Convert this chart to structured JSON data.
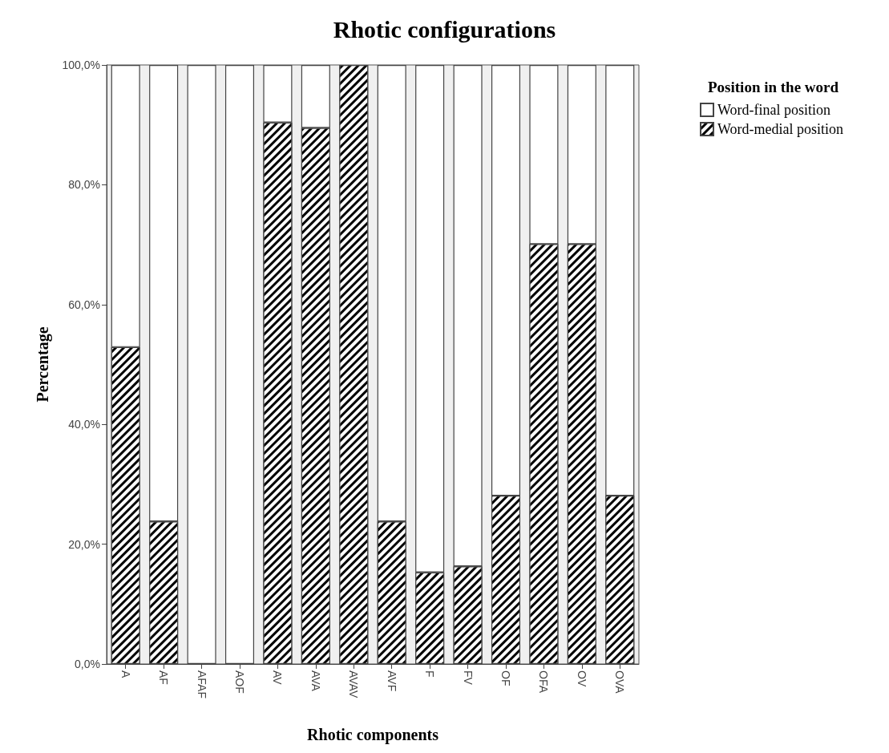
{
  "chart_data": {
    "type": "bar",
    "title": "Rhotic configurations",
    "xlabel": "Rhotic components",
    "ylabel": "Percentage",
    "legend_title": "Position in the word",
    "categories": [
      "A",
      "AF",
      "AFAF",
      "AOF",
      "AV",
      "AVA",
      "AVAV",
      "AVF",
      "F",
      "FV",
      "OF",
      "OFA",
      "OV",
      "OVA"
    ],
    "stacked": true,
    "series": [
      {
        "name": "Word-medial position",
        "color": "#000000",
        "values": [
          52.9,
          23.8,
          0,
          0,
          90.4,
          89.5,
          100,
          23.8,
          15.3,
          16.3,
          28.1,
          70.1,
          70.1,
          28.1
        ]
      },
      {
        "name": "Word-final position",
        "color": "#ffffff",
        "values": [
          47.1,
          76.2,
          100,
          100,
          9.6,
          10.5,
          0,
          76.2,
          84.7,
          83.7,
          71.9,
          29.9,
          29.9,
          71.9
        ]
      }
    ],
    "ylim": [
      0,
      100
    ],
    "yticks": [
      {
        "value": 0,
        "label": "0,0%"
      },
      {
        "value": 20,
        "label": "20,0%"
      },
      {
        "value": 40,
        "label": "40,0%"
      },
      {
        "value": 60,
        "label": "60,0%"
      },
      {
        "value": 80,
        "label": "80,0%"
      },
      {
        "value": 100,
        "label": "100,0%"
      }
    ],
    "grid": false,
    "legend": "top right"
  }
}
